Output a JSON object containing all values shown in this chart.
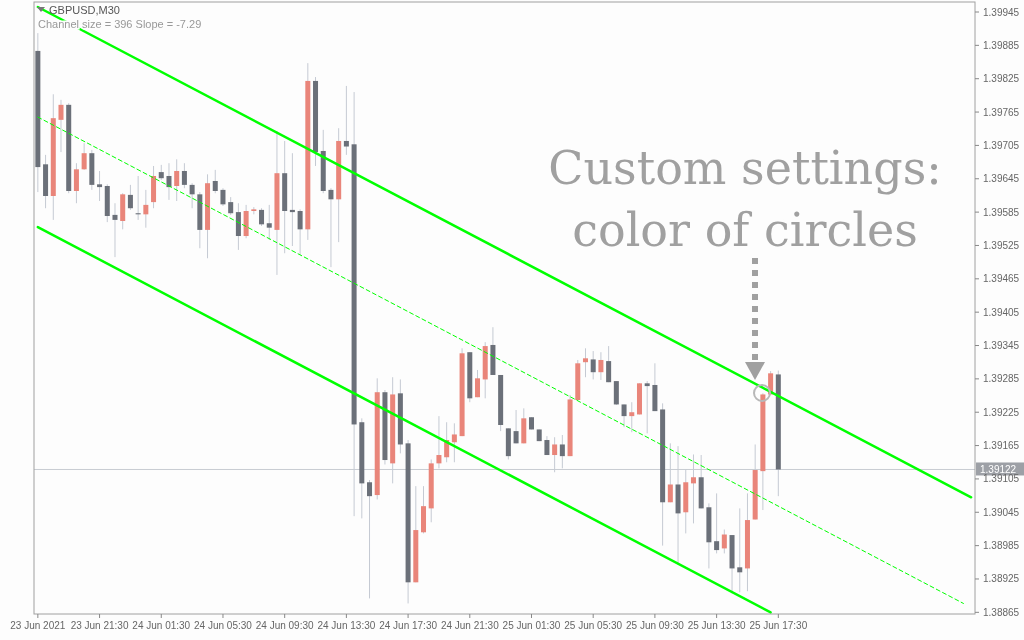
{
  "chart_data": {
    "type": "candlestick",
    "title": "GBPUSD,M30",
    "subtitle": "Channel size = 396 Slope = -7.29",
    "annotations": [
      "Custom settings: color of circles"
    ],
    "x": [
      "2021-06-23T17:30",
      "2021-06-23T18:00",
      "2021-06-23T18:30",
      "2021-06-23T19:00",
      "2021-06-23T19:30",
      "2021-06-23T20:00",
      "2021-06-23T20:30",
      "2021-06-23T21:00",
      "2021-06-23T21:30",
      "2021-06-23T22:00",
      "2021-06-23T22:30",
      "2021-06-23T23:00",
      "2021-06-23T23:30",
      "2021-06-24T00:00",
      "2021-06-24T00:30",
      "2021-06-24T01:00",
      "2021-06-24T01:30",
      "2021-06-24T02:00",
      "2021-06-24T02:30",
      "2021-06-24T03:00",
      "2021-06-24T03:30",
      "2021-06-24T04:00",
      "2021-06-24T04:30",
      "2021-06-24T05:00",
      "2021-06-24T05:30",
      "2021-06-24T06:00",
      "2021-06-24T06:30",
      "2021-06-24T07:00",
      "2021-06-24T07:30",
      "2021-06-24T08:00",
      "2021-06-24T08:30",
      "2021-06-24T09:00",
      "2021-06-24T09:30",
      "2021-06-24T10:00",
      "2021-06-24T10:30",
      "2021-06-24T11:00",
      "2021-06-24T11:30",
      "2021-06-24T12:00",
      "2021-06-24T12:30",
      "2021-06-24T13:00",
      "2021-06-24T13:30",
      "2021-06-24T14:00",
      "2021-06-24T14:30",
      "2021-06-24T15:00",
      "2021-06-24T15:30",
      "2021-06-24T16:00",
      "2021-06-24T16:30",
      "2021-06-24T17:00",
      "2021-06-24T17:30",
      "2021-06-24T18:00",
      "2021-06-24T18:30",
      "2021-06-24T19:00",
      "2021-06-24T19:30",
      "2021-06-24T20:00",
      "2021-06-24T20:30",
      "2021-06-24T21:00",
      "2021-06-24T21:30",
      "2021-06-24T22:00",
      "2021-06-24T22:30",
      "2021-06-24T23:00",
      "2021-06-24T23:30",
      "2021-06-25T00:00",
      "2021-06-25T00:30",
      "2021-06-25T01:00",
      "2021-06-25T01:30",
      "2021-06-25T02:00",
      "2021-06-25T02:30",
      "2021-06-25T03:00",
      "2021-06-25T03:30",
      "2021-06-25T04:00",
      "2021-06-25T04:30",
      "2021-06-25T05:00",
      "2021-06-25T05:30",
      "2021-06-25T06:00",
      "2021-06-25T06:30",
      "2021-06-25T07:00",
      "2021-06-25T07:30",
      "2021-06-25T08:00",
      "2021-06-25T08:30",
      "2021-06-25T09:00",
      "2021-06-25T09:30",
      "2021-06-25T10:00",
      "2021-06-25T10:30",
      "2021-06-25T11:00",
      "2021-06-25T11:30",
      "2021-06-25T12:00",
      "2021-06-25T12:30",
      "2021-06-25T13:00",
      "2021-06-25T13:30",
      "2021-06-25T14:00",
      "2021-06-25T14:30",
      "2021-06-25T15:00",
      "2021-06-25T15:30",
      "2021-06-25T16:00",
      "2021-06-25T16:30",
      "2021-06-25T17:00",
      "2021-06-25T17:30"
    ],
    "ohlc": [
      [
        1.39875,
        1.39907,
        1.39621,
        1.39666
      ],
      [
        1.39671,
        1.39688,
        1.39592,
        1.39614
      ],
      [
        1.39614,
        1.39797,
        1.39571,
        1.39754
      ],
      [
        1.39751,
        1.39787,
        1.39693,
        1.39778
      ],
      [
        1.39778,
        1.39781,
        1.39619,
        1.39623
      ],
      [
        1.39623,
        1.39673,
        1.39601,
        1.39662
      ],
      [
        1.39662,
        1.39709,
        1.39661,
        1.39691
      ],
      [
        1.39691,
        1.39697,
        1.39625,
        1.39634
      ],
      [
        1.39635,
        1.39659,
        1.39605,
        1.3963
      ],
      [
        1.39632,
        1.39635,
        1.39567,
        1.39578
      ],
      [
        1.3958,
        1.39601,
        1.39504,
        1.39571
      ],
      [
        1.39569,
        1.39619,
        1.39554,
        1.39617
      ],
      [
        1.39616,
        1.39634,
        1.39589,
        1.39592
      ],
      [
        1.39583,
        1.3965,
        1.39571,
        1.39581
      ],
      [
        1.39581,
        1.39625,
        1.39557,
        1.39598
      ],
      [
        1.39603,
        1.39668,
        1.39592,
        1.3965
      ],
      [
        1.39657,
        1.3967,
        1.39643,
        1.39646
      ],
      [
        1.3965,
        1.39673,
        1.39607,
        1.3963
      ],
      [
        1.39632,
        1.3968,
        1.39605,
        1.39659
      ],
      [
        1.39659,
        1.39673,
        1.39628,
        1.39634
      ],
      [
        1.39634,
        1.39637,
        1.39592,
        1.39617
      ],
      [
        1.39617,
        1.39621,
        1.3952,
        1.39553
      ],
      [
        1.39553,
        1.39653,
        1.39502,
        1.39637
      ],
      [
        1.39641,
        1.39661,
        1.39619,
        1.39623
      ],
      [
        1.39625,
        1.39628,
        1.39596,
        1.39599
      ],
      [
        1.39603,
        1.39612,
        1.3958,
        1.39583
      ],
      [
        1.39585,
        1.39601,
        1.39517,
        1.39542
      ],
      [
        1.39542,
        1.39598,
        1.39538,
        1.39587
      ],
      [
        1.39587,
        1.39594,
        1.39581,
        1.3959
      ],
      [
        1.39589,
        1.39592,
        1.3956,
        1.39563
      ],
      [
        1.39565,
        1.39598,
        1.39535,
        1.39557
      ],
      [
        1.39553,
        1.39731,
        1.39472,
        1.39655
      ],
      [
        1.39655,
        1.39713,
        1.39511,
        1.39587
      ],
      [
        1.39589,
        1.39691,
        1.39524,
        1.39585
      ],
      [
        1.39587,
        1.3959,
        1.39508,
        1.39554
      ],
      [
        1.39554,
        1.39853,
        1.39535,
        1.39821
      ],
      [
        1.39821,
        1.39828,
        1.39668,
        1.39693
      ],
      [
        1.39695,
        1.39733,
        1.39619,
        1.39623
      ],
      [
        1.39625,
        1.39628,
        1.39486,
        1.39608
      ],
      [
        1.39608,
        1.39736,
        1.39531,
        1.39713
      ],
      [
        1.39713,
        1.39812,
        1.39688,
        1.39703
      ],
      [
        1.39707,
        1.39801,
        1.39038,
        1.39203
      ],
      [
        1.39207,
        1.39214,
        1.39034,
        1.39097
      ],
      [
        1.39099,
        1.39103,
        1.3889,
        1.39074
      ],
      [
        1.39076,
        1.39286,
        1.39068,
        1.39261
      ],
      [
        1.39261,
        1.39265,
        1.39131,
        1.39139
      ],
      [
        1.39133,
        1.39288,
        1.39097,
        1.39257
      ],
      [
        1.39259,
        1.39284,
        1.39151,
        1.39167
      ],
      [
        1.39169,
        1.39175,
        1.38881,
        1.38919
      ],
      [
        1.38919,
        1.39092,
        1.38919,
        1.39013
      ],
      [
        1.39009,
        1.39092,
        1.39007,
        1.39056
      ],
      [
        1.39052,
        1.3914,
        1.39027,
        1.39133
      ],
      [
        1.39133,
        1.39218,
        1.39124,
        1.39148
      ],
      [
        1.39144,
        1.39207,
        1.39135,
        1.39175
      ],
      [
        1.39171,
        1.39205,
        1.39135,
        1.39185
      ],
      [
        1.39182,
        1.3934,
        1.39182,
        1.39331
      ],
      [
        1.39333,
        1.39333,
        1.39243,
        1.3925
      ],
      [
        1.39252,
        1.39301,
        1.39252,
        1.39286
      ],
      [
        1.39284,
        1.39351,
        1.3925,
        1.39344
      ],
      [
        1.39346,
        1.39378,
        1.39292,
        1.39292
      ],
      [
        1.39292,
        1.39292,
        1.39191,
        1.39202
      ],
      [
        1.39196,
        1.39196,
        1.3914,
        1.39146
      ],
      [
        1.39191,
        1.39229,
        1.39169,
        1.39169
      ],
      [
        1.39169,
        1.39232,
        1.39169,
        1.39214
      ],
      [
        1.39216,
        1.39216,
        1.39194,
        1.39194
      ],
      [
        1.39194,
        1.39194,
        1.39173,
        1.39173
      ],
      [
        1.39175,
        1.39182,
        1.39148,
        1.39148
      ],
      [
        1.39148,
        1.3918,
        1.39117,
        1.39167
      ],
      [
        1.39167,
        1.39184,
        1.39124,
        1.39146
      ],
      [
        1.39146,
        1.39256,
        1.39146,
        1.39248
      ],
      [
        1.39247,
        1.39319,
        1.39247,
        1.39313
      ],
      [
        1.39315,
        1.3934,
        1.39288,
        1.39322
      ],
      [
        1.3932,
        1.39335,
        1.39284,
        1.39297
      ],
      [
        1.39297,
        1.39333,
        1.39283,
        1.39319
      ],
      [
        1.39317,
        1.39344,
        1.39279,
        1.39279
      ],
      [
        1.39281,
        1.39281,
        1.39238,
        1.39239
      ],
      [
        1.39239,
        1.39239,
        1.39198,
        1.39218
      ],
      [
        1.39218,
        1.39243,
        1.39189,
        1.39225
      ],
      [
        1.39221,
        1.39277,
        1.39221,
        1.39277
      ],
      [
        1.39277,
        1.39281,
        1.39187,
        1.39272
      ],
      [
        1.39274,
        1.39313,
        1.39227,
        1.39227
      ],
      [
        1.3923,
        1.39241,
        1.38985,
        1.39063
      ],
      [
        1.39063,
        1.39169,
        1.39063,
        1.39095
      ],
      [
        1.39095,
        1.39164,
        1.38953,
        1.39043
      ],
      [
        1.39045,
        1.39122,
        1.39007,
        1.39099
      ],
      [
        1.39097,
        1.39149,
        1.39025,
        1.39108
      ],
      [
        1.39108,
        1.39148,
        1.39052,
        1.39052
      ],
      [
        1.39054,
        1.39061,
        1.38944,
        1.38991
      ],
      [
        1.38993,
        1.39079,
        1.38971,
        1.38977
      ],
      [
        1.3898,
        1.39014,
        1.38971,
        1.39005
      ],
      [
        1.39004,
        1.39004,
        1.38899,
        1.38944
      ],
      [
        1.38946,
        1.39052,
        1.38901,
        1.38937
      ],
      [
        1.38944,
        1.39079,
        1.38903,
        1.39031
      ],
      [
        1.39032,
        1.39167,
        1.39032,
        1.39121
      ],
      [
        1.39119,
        1.39259,
        1.39049,
        1.39257
      ],
      [
        1.39257,
        1.39299,
        1.39257,
        1.39295
      ],
      [
        1.39293,
        1.393,
        1.39074,
        1.39122
      ]
    ],
    "colors": [
      "#6b7079",
      "#6b7079",
      "#e9857a",
      "#e9857a",
      "#6b7079",
      "#e9857a",
      "#e9857a",
      "#6b7079",
      "#6b7079",
      "#6b7079",
      "#6b7079",
      "#e9857a",
      "#6b7079",
      "#6b7079",
      "#e9857a",
      "#e9857a",
      "#6b7079",
      "#6b7079",
      "#e9857a",
      "#6b7079",
      "#6b7079",
      "#6b7079",
      "#e9857a",
      "#6b7079",
      "#6b7079",
      "#6b7079",
      "#6b7079",
      "#e9857a",
      "#e9857a",
      "#6b7079",
      "#6b7079",
      "#e9857a",
      "#6b7079",
      "#6b7079",
      "#6b7079",
      "#e9857a",
      "#6b7079",
      "#6b7079",
      "#6b7079",
      "#e9857a",
      "#6b7079",
      "#6b7079",
      "#6b7079",
      "#6b7079",
      "#e9857a",
      "#6b7079",
      "#e9857a",
      "#6b7079",
      "#6b7079",
      "#e9857a",
      "#e9857a",
      "#e9857a",
      "#e9857a",
      "#e9857a",
      "#e9857a",
      "#e9857a",
      "#6b7079",
      "#e9857a",
      "#e9857a",
      "#6b7079",
      "#6b7079",
      "#6b7079",
      "#6b7079",
      "#e9857a",
      "#6b7079",
      "#6b7079",
      "#6b7079",
      "#e9857a",
      "#6b7079",
      "#e9857a",
      "#e9857a",
      "#e9857a",
      "#6b7079",
      "#e9857a",
      "#6b7079",
      "#6b7079",
      "#6b7079",
      "#e9857a",
      "#e9857a",
      "#6b7079",
      "#6b7079",
      "#6b7079",
      "#e9857a",
      "#6b7079",
      "#e9857a",
      "#e9857a",
      "#6b7079",
      "#6b7079",
      "#6b7079",
      "#e9857a",
      "#6b7079",
      "#6b7079",
      "#e9857a",
      "#e9857a",
      "#e9857a",
      "#e9857a",
      "#6b7079"
    ],
    "series": [
      {
        "type": "line",
        "x": [
          "2021-06-23T17:30",
          "2021-06-26T06:00"
        ],
        "values": [
          1.39954,
          1.39072
        ],
        "color": "#00ff00",
        "line_style": "solid"
      },
      {
        "type": "line",
        "x": [
          "2021-06-23T17:30",
          "2021-06-26T05:30"
        ],
        "values": [
          1.39756,
          1.38881
        ],
        "color": "#00ff00",
        "line_style": "dashed"
      },
      {
        "type": "line",
        "x": [
          "2021-06-23T17:30",
          "2021-06-25T17:00"
        ],
        "values": [
          1.39558,
          1.38865
        ],
        "color": "#00ff00",
        "line_style": "solid"
      }
    ],
    "xlim": [
      "2021-06-23T17:15",
      "2021-06-26T06:15"
    ],
    "xticks": [
      {
        "value": "2021-06-23T17:30",
        "label": "23 Jun 2021"
      },
      {
        "value": "2021-06-23T21:30",
        "label": "23 Jun 21:30"
      },
      {
        "value": "2021-06-24T01:30",
        "label": "24 Jun 01:30"
      },
      {
        "value": "2021-06-24T05:30",
        "label": "24 Jun 05:30"
      },
      {
        "value": "2021-06-24T09:30",
        "label": "24 Jun 09:30"
      },
      {
        "value": "2021-06-24T13:30",
        "label": "24 Jun 13:30"
      },
      {
        "value": "2021-06-24T17:30",
        "label": "24 Jun 17:30"
      },
      {
        "value": "2021-06-24T21:30",
        "label": "24 Jun 21:30"
      },
      {
        "value": "2021-06-25T01:30",
        "label": "25 Jun 01:30"
      },
      {
        "value": "2021-06-25T05:30",
        "label": "25 Jun 05:30"
      },
      {
        "value": "2021-06-25T09:30",
        "label": "25 Jun 09:30"
      },
      {
        "value": "2021-06-25T13:30",
        "label": "25 Jun 13:30"
      },
      {
        "value": "2021-06-25T17:30",
        "label": "25 Jun 17:30"
      }
    ],
    "ylim": [
      1.38862,
      1.39963
    ],
    "yticks": [
      1.38865,
      1.38925,
      1.38985,
      1.39045,
      1.39105,
      1.39165,
      1.39225,
      1.39285,
      1.39345,
      1.39405,
      1.39465,
      1.39525,
      1.39585,
      1.39645,
      1.39705,
      1.39765,
      1.39825,
      1.39885,
      1.39945
    ],
    "ref_lines": [
      {
        "axis": "y",
        "value": 1.39122,
        "label": "1.39122",
        "color": "#c8ccd2"
      }
    ]
  }
}
